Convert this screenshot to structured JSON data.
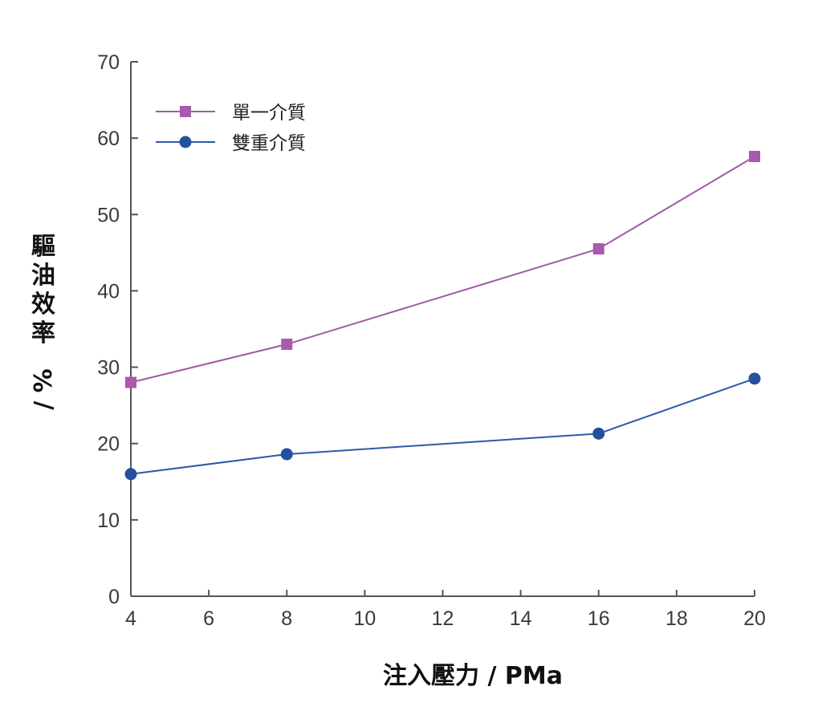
{
  "chart_data": {
    "type": "line",
    "x": [
      4,
      8,
      16,
      20
    ],
    "series": [
      {
        "name": "單一介質",
        "values": [
          28,
          33,
          45.5,
          57.6
        ],
        "color": "#a05aa6",
        "marker": "square",
        "marker_color": "#a95aad"
      },
      {
        "name": "雙重介質",
        "values": [
          16,
          18.6,
          21.3,
          28.5
        ],
        "color": "#2e5aa6",
        "marker": "circle",
        "marker_color": "#24509e"
      }
    ],
    "xlabel": "注入壓力 / PMa",
    "ylabel": "驅油效率 / %",
    "xlim": [
      4,
      20
    ],
    "ylim": [
      0,
      70
    ],
    "xticks": [
      "4",
      "6",
      "8",
      "10",
      "12",
      "14",
      "16",
      "18",
      "20"
    ],
    "yticks": [
      "0",
      "10",
      "20",
      "30",
      "40",
      "50",
      "60",
      "70"
    ],
    "grid": false,
    "legend_position": "top-left",
    "axis_color": "#555555"
  }
}
